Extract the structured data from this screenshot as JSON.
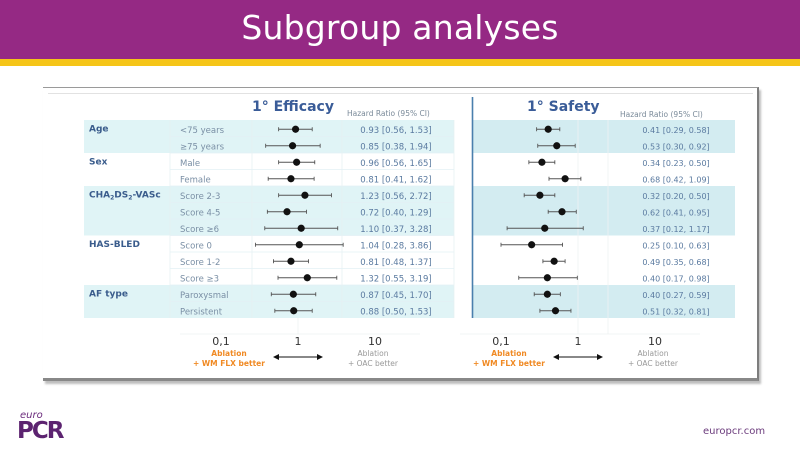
{
  "slide": {
    "title": "Subgroup analyses",
    "logo_small": "euro",
    "logo_big": "PCR",
    "website": "europcr.com",
    "colors": {
      "header": "#952984",
      "stripe": "#f5c518",
      "row_shade": "#d6f0f3",
      "label_blue": "#3a5c8c",
      "value_blue": "#5a7aa0",
      "orange": "#f08a24",
      "gray_text": "#999999"
    }
  },
  "chart_data": [
    {
      "type": "forest",
      "title": "1° Efficacy",
      "value_header": "Hazard Ratio (95% CI)",
      "xscale": "log",
      "xlim": [
        0.1,
        10
      ],
      "xticks": [
        "0,1",
        "1",
        "10"
      ],
      "xtick_values": [
        0.1,
        1,
        10
      ],
      "left_note": [
        "Ablation",
        "+ WM FLX  better"
      ],
      "right_note": [
        "Ablation",
        "+ OAC better"
      ],
      "rows": [
        {
          "label": "<75 years",
          "hr": 0.93,
          "lo": 0.56,
          "hi": 1.53,
          "text": "0.93 [0.56, 1.53]"
        },
        {
          "label": "≥75 years",
          "hr": 0.85,
          "lo": 0.38,
          "hi": 1.94,
          "text": "0.85 [0.38, 1.94]"
        },
        {
          "label": "Male",
          "hr": 0.96,
          "lo": 0.56,
          "hi": 1.65,
          "text": "0.96 [0.56, 1.65]"
        },
        {
          "label": "Female",
          "hr": 0.81,
          "lo": 0.41,
          "hi": 1.62,
          "text": "0.81 [0.41, 1.62]"
        },
        {
          "label": "Score 2-3",
          "hr": 1.23,
          "lo": 0.56,
          "hi": 2.72,
          "text": "1.23 [0.56, 2.72]"
        },
        {
          "label": "Score 4-5",
          "hr": 0.72,
          "lo": 0.4,
          "hi": 1.29,
          "text": "0.72 [0.40, 1.29]"
        },
        {
          "label": "Score ≥6",
          "hr": 1.1,
          "lo": 0.37,
          "hi": 3.28,
          "text": "1.10 [0.37, 3.28]"
        },
        {
          "label": "Score 0",
          "hr": 1.04,
          "lo": 0.28,
          "hi": 3.86,
          "text": "1.04 [0.28, 3.86]"
        },
        {
          "label": "Score 1-2",
          "hr": 0.81,
          "lo": 0.48,
          "hi": 1.37,
          "text": "0.81 [0.48, 1.37]"
        },
        {
          "label": "Score ≥3",
          "hr": 1.32,
          "lo": 0.55,
          "hi": 3.19,
          "text": "1.32 [0.55, 3.19]"
        },
        {
          "label": "Paroxysmal",
          "hr": 0.87,
          "lo": 0.45,
          "hi": 1.7,
          "text": "0.87 [0.45, 1.70]"
        },
        {
          "label": "Persistent",
          "hr": 0.88,
          "lo": 0.5,
          "hi": 1.53,
          "text": "0.88 [0.50, 1.53]"
        }
      ]
    },
    {
      "type": "forest",
      "title": "1° Safety",
      "value_header": "Hazard Ratio (95% CI)",
      "xscale": "log",
      "xlim": [
        0.1,
        10
      ],
      "xticks": [
        "0,1",
        "1",
        "10"
      ],
      "xtick_values": [
        0.1,
        1,
        10
      ],
      "left_note": [
        "Ablation",
        "+ WM FLX  better"
      ],
      "right_note": [
        "Ablation",
        "+ OAC better"
      ],
      "rows": [
        {
          "hr": 0.41,
          "lo": 0.29,
          "hi": 0.58,
          "text": "0.41 [0.29, 0.58]"
        },
        {
          "hr": 0.53,
          "lo": 0.3,
          "hi": 0.92,
          "text": "0.53 [0.30, 0.92]"
        },
        {
          "hr": 0.34,
          "lo": 0.23,
          "hi": 0.5,
          "text": "0.34 [0.23, 0.50]"
        },
        {
          "hr": 0.68,
          "lo": 0.42,
          "hi": 1.09,
          "text": "0.68 [0.42, 1.09]"
        },
        {
          "hr": 0.32,
          "lo": 0.2,
          "hi": 0.5,
          "text": "0.32 [0.20, 0.50]"
        },
        {
          "hr": 0.62,
          "lo": 0.41,
          "hi": 0.95,
          "text": "0.62 [0.41, 0.95]"
        },
        {
          "hr": 0.37,
          "lo": 0.12,
          "hi": 1.17,
          "text": "0.37 [0.12, 1.17]"
        },
        {
          "hr": 0.25,
          "lo": 0.1,
          "hi": 0.63,
          "text": "0.25 [0.10, 0.63]"
        },
        {
          "hr": 0.49,
          "lo": 0.35,
          "hi": 0.68,
          "text": "0.49 [0.35, 0.68]"
        },
        {
          "hr": 0.4,
          "lo": 0.17,
          "hi": 0.98,
          "text": "0.40 [0.17, 0.98]"
        },
        {
          "hr": 0.4,
          "lo": 0.27,
          "hi": 0.59,
          "text": "0.40 [0.27, 0.59]"
        },
        {
          "hr": 0.51,
          "lo": 0.32,
          "hi": 0.81,
          "text": "0.51 [0.32, 0.81]"
        }
      ]
    }
  ],
  "groups": [
    {
      "name": "Age",
      "rows": [
        0,
        1
      ]
    },
    {
      "name": "Sex",
      "rows": [
        2,
        3
      ]
    },
    {
      "name": "CHA2DS2-VASc",
      "name_main": "CHA",
      "name_sub1": "2",
      "name_mid": "DS",
      "name_sub2": "2",
      "name_end": "-VASc",
      "rows": [
        4,
        5,
        6
      ]
    },
    {
      "name": "HAS-BLED",
      "rows": [
        7,
        8,
        9
      ]
    },
    {
      "name": "AF type",
      "rows": [
        10,
        11
      ]
    }
  ]
}
